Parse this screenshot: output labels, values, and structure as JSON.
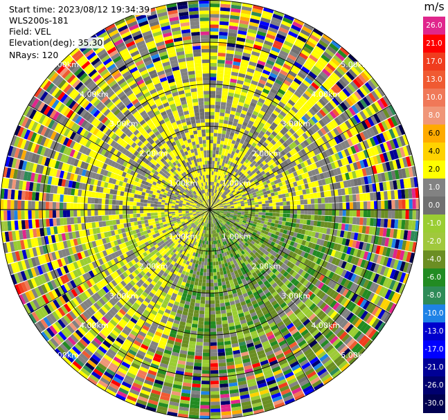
{
  "info": {
    "start_time": "Start time: 2023/08/12 19:34:39",
    "instrument": "WLS200s-181",
    "field": "Field: VEL",
    "elevation": "Elevation(deg): 35.30",
    "nrays": "NRays: 120"
  },
  "colorbar": {
    "unit": "m/s",
    "bins": [
      {
        "label": "26.0",
        "color": "#e0268c"
      },
      {
        "label": "21.0",
        "color": "#ff0000"
      },
      {
        "label": "17.0",
        "color": "#f03c1e"
      },
      {
        "label": "13.0",
        "color": "#f05a32"
      },
      {
        "label": "10.0",
        "color": "#f07858"
      },
      {
        "label": "8.0",
        "color": "#f09678"
      },
      {
        "label": "6.0",
        "color": "#ffaa00"
      },
      {
        "label": "4.0",
        "color": "#ffd200"
      },
      {
        "label": "2.0",
        "color": "#ffff00"
      },
      {
        "label": "1.0",
        "color": "#828282"
      },
      {
        "label": "0.0",
        "color": "#707070"
      },
      {
        "label": "-1.0",
        "color": "#9acd32"
      },
      {
        "label": "-2.0",
        "color": "#a0c83c"
      },
      {
        "label": "-4.0",
        "color": "#6b8e23"
      },
      {
        "label": "-6.0",
        "color": "#228b22"
      },
      {
        "label": "-8.0",
        "color": "#2e8b57"
      },
      {
        "label": "-10.0",
        "color": "#1e82e6"
      },
      {
        "label": "-13.0",
        "color": "#0000cd"
      },
      {
        "label": "-17.0",
        "color": "#0000ff"
      },
      {
        "label": "-21.0",
        "color": "#000096"
      },
      {
        "label": "-26.0",
        "color": "#00006e"
      },
      {
        "label": "-30.0",
        "color": "#000050"
      }
    ]
  },
  "range_labels": [
    {
      "text": "1.00km"
    },
    {
      "text": "1.00km"
    },
    {
      "text": "1.00km"
    },
    {
      "text": "1.00km"
    },
    {
      "text": "2.00km"
    },
    {
      "text": "2.00km"
    },
    {
      "text": "2.00km"
    },
    {
      "text": "2.00km"
    },
    {
      "text": "3.00km"
    },
    {
      "text": "3.00km"
    },
    {
      "text": "3.00km"
    },
    {
      "text": "3.00km"
    },
    {
      "text": "4.00km"
    },
    {
      "text": "4.00km"
    },
    {
      "text": "4.00km"
    },
    {
      "text": "4.00km"
    },
    {
      "text": "5.00km"
    },
    {
      "text": "5.00km"
    },
    {
      "text": "5.00km"
    },
    {
      "text": "5.00km"
    }
  ],
  "ppi": {
    "max_range_km": 5.0,
    "range_rings_km": [
      1,
      2,
      3,
      4,
      5
    ],
    "nrays": 120
  }
}
